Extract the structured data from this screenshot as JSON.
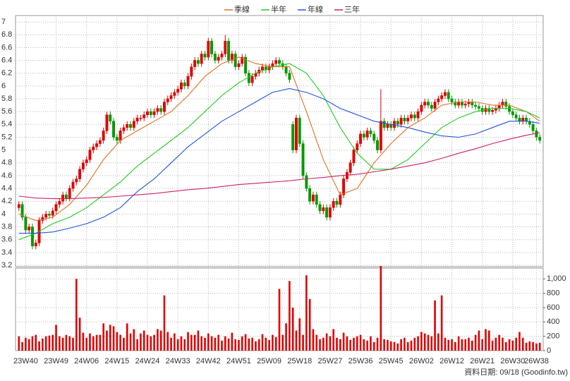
{
  "chart_data": {
    "type": "candlestick",
    "xlim": [
      -1,
      155
    ],
    "xticks": [
      {
        "value": 2,
        "label": "23W40"
      },
      {
        "value": 11,
        "label": "23W49"
      },
      {
        "value": 20,
        "label": "24W06"
      },
      {
        "value": 29,
        "label": "24W15"
      },
      {
        "value": 38,
        "label": "24W24"
      },
      {
        "value": 47,
        "label": "24W33"
      },
      {
        "value": 56,
        "label": "24W42"
      },
      {
        "value": 65,
        "label": "24W51"
      },
      {
        "value": 74,
        "label": "25W09"
      },
      {
        "value": 83,
        "label": "25W18"
      },
      {
        "value": 92,
        "label": "25W27"
      },
      {
        "value": 101,
        "label": "25W36"
      },
      {
        "value": 110,
        "label": "25W45"
      },
      {
        "value": 119,
        "label": "26W02"
      },
      {
        "value": 128,
        "label": "26W12"
      },
      {
        "value": 137,
        "label": "26W21"
      },
      {
        "value": 146,
        "label": "26W30"
      },
      {
        "value": 153,
        "label": "26W38"
      }
    ],
    "ylim": [
      3.2,
      7.1
    ],
    "yticks": [
      3.2,
      3.4,
      3.6,
      3.8,
      4,
      4.2,
      4.4,
      4.6,
      4.8,
      5,
      5.2,
      5.4,
      5.6,
      5.8,
      6,
      6.2,
      6.4,
      6.6,
      6.8,
      7
    ],
    "grid": true,
    "up_color": "#e00000",
    "down_color": "#009900",
    "open": [
      4.1,
      4.15,
      3.95,
      3.75,
      3.8,
      3.5,
      3.55,
      3.9,
      3.95,
      4.0,
      3.98,
      4.05,
      4.15,
      4.2,
      4.3,
      4.25,
      4.4,
      4.5,
      4.55,
      4.7,
      4.8,
      4.85,
      5.0,
      5.05,
      5.1,
      5.15,
      5.3,
      5.55,
      5.45,
      5.2,
      5.15,
      5.3,
      5.35,
      5.4,
      5.35,
      5.45,
      5.5,
      5.5,
      5.55,
      5.6,
      5.55,
      5.6,
      5.65,
      5.6,
      5.75,
      5.8,
      5.85,
      5.9,
      5.95,
      6.05,
      6.0,
      6.15,
      6.3,
      6.4,
      6.35,
      6.5,
      6.45,
      6.7,
      6.5,
      6.4,
      6.45,
      6.5,
      6.7,
      6.4,
      6.5,
      6.3,
      6.35,
      6.45,
      6.2,
      6.05,
      6.15,
      6.2,
      6.25,
      6.3,
      6.25,
      6.3,
      6.35,
      6.4,
      6.35,
      6.3,
      6.2,
      5.4,
      5.0,
      5.5,
      5.1,
      4.6,
      4.4,
      4.2,
      4.3,
      4.15,
      4.05,
      4.1,
      3.95,
      4.1,
      4.2,
      4.15,
      4.3,
      4.55,
      4.65,
      4.8,
      5.0,
      5.1,
      5.25,
      5.2,
      5.3,
      5.25,
      5.15,
      5.0,
      5.45,
      5.35,
      5.4,
      5.35,
      5.45,
      5.4,
      5.5,
      5.45,
      5.5,
      5.55,
      5.5,
      5.6,
      5.7,
      5.75,
      5.7,
      5.65,
      5.75,
      5.8,
      5.85,
      5.9,
      5.8,
      5.75,
      5.7,
      5.75,
      5.7,
      5.72,
      5.75,
      5.7,
      5.68,
      5.65,
      5.6,
      5.65,
      5.6,
      5.62,
      5.65,
      5.7,
      5.75,
      5.68,
      5.6,
      5.55,
      5.5,
      5.45,
      5.5,
      5.45,
      5.4,
      5.3,
      5.2
    ],
    "high": [
      4.2,
      4.2,
      4.0,
      3.85,
      3.85,
      3.6,
      3.95,
      4.0,
      4.05,
      4.05,
      4.1,
      4.2,
      4.25,
      4.35,
      4.35,
      4.45,
      4.55,
      4.6,
      4.75,
      4.85,
      4.9,
      5.05,
      5.1,
      5.15,
      5.2,
      5.35,
      5.6,
      5.6,
      5.5,
      5.25,
      5.35,
      5.4,
      5.45,
      5.45,
      5.5,
      5.55,
      5.55,
      5.6,
      5.65,
      5.65,
      5.65,
      5.7,
      5.7,
      5.8,
      5.85,
      5.9,
      5.95,
      6.0,
      6.1,
      6.1,
      6.2,
      6.35,
      6.45,
      6.45,
      6.55,
      6.55,
      6.75,
      6.75,
      6.55,
      6.5,
      6.55,
      6.8,
      6.75,
      6.55,
      6.55,
      6.4,
      6.5,
      6.5,
      6.25,
      6.2,
      6.25,
      6.3,
      6.35,
      6.35,
      6.35,
      6.4,
      6.45,
      6.45,
      6.4,
      6.35,
      6.25,
      5.45,
      5.55,
      5.55,
      5.15,
      4.65,
      4.45,
      4.35,
      4.35,
      4.2,
      4.15,
      4.15,
      4.15,
      4.25,
      4.25,
      4.35,
      4.6,
      4.7,
      4.85,
      5.05,
      5.15,
      5.3,
      5.3,
      5.35,
      5.35,
      5.3,
      5.2,
      5.95,
      5.5,
      5.45,
      5.45,
      5.5,
      5.5,
      5.55,
      5.55,
      5.55,
      5.6,
      5.6,
      5.65,
      5.75,
      5.8,
      5.8,
      5.75,
      5.8,
      5.85,
      5.9,
      5.95,
      5.95,
      5.85,
      5.8,
      5.8,
      5.8,
      5.77,
      5.8,
      5.8,
      5.75,
      5.73,
      5.7,
      5.7,
      5.7,
      5.67,
      5.7,
      5.75,
      5.8,
      5.8,
      5.73,
      5.65,
      5.6,
      5.55,
      5.55,
      5.55,
      5.5,
      5.45,
      5.35,
      5.25
    ],
    "low": [
      4.05,
      3.9,
      3.7,
      3.7,
      3.45,
      3.45,
      3.5,
      3.85,
      3.9,
      3.93,
      3.93,
      4.0,
      4.1,
      4.15,
      4.2,
      4.2,
      4.35,
      4.45,
      4.5,
      4.65,
      4.75,
      4.8,
      4.95,
      5.0,
      5.05,
      5.1,
      5.25,
      5.4,
      5.15,
      5.1,
      5.1,
      5.25,
      5.3,
      5.3,
      5.3,
      5.4,
      5.45,
      5.45,
      5.5,
      5.5,
      5.5,
      5.55,
      5.55,
      5.55,
      5.7,
      5.75,
      5.8,
      5.85,
      5.9,
      5.95,
      5.95,
      6.1,
      6.25,
      6.3,
      6.3,
      6.4,
      6.4,
      6.45,
      6.35,
      6.35,
      6.4,
      6.45,
      6.35,
      6.35,
      6.25,
      6.25,
      6.3,
      6.15,
      6.0,
      6.0,
      6.1,
      6.15,
      6.2,
      6.2,
      6.2,
      6.25,
      6.3,
      6.3,
      6.25,
      6.15,
      6.05,
      4.95,
      4.95,
      5.05,
      4.55,
      4.35,
      4.15,
      4.15,
      4.1,
      4.0,
      4.0,
      3.9,
      3.9,
      4.05,
      4.1,
      4.1,
      4.25,
      4.5,
      4.6,
      4.75,
      4.95,
      5.05,
      5.15,
      5.15,
      5.2,
      5.1,
      4.95,
      4.95,
      5.3,
      5.3,
      5.3,
      5.3,
      5.35,
      5.35,
      5.4,
      5.4,
      5.45,
      5.45,
      5.45,
      5.55,
      5.65,
      5.65,
      5.6,
      5.6,
      5.7,
      5.75,
      5.8,
      5.75,
      5.7,
      5.65,
      5.65,
      5.65,
      5.65,
      5.67,
      5.65,
      5.63,
      5.6,
      5.55,
      5.55,
      5.55,
      5.55,
      5.57,
      5.6,
      5.65,
      5.63,
      5.55,
      5.5,
      5.45,
      5.4,
      5.4,
      5.4,
      5.35,
      5.25,
      5.15,
      5.1
    ],
    "close": [
      4.15,
      3.95,
      3.75,
      3.8,
      3.5,
      3.55,
      3.9,
      3.95,
      4.0,
      3.98,
      4.05,
      4.15,
      4.2,
      4.3,
      4.25,
      4.4,
      4.5,
      4.55,
      4.7,
      4.8,
      4.85,
      5.0,
      5.05,
      5.1,
      5.15,
      5.3,
      5.55,
      5.45,
      5.2,
      5.15,
      5.3,
      5.35,
      5.4,
      5.35,
      5.45,
      5.5,
      5.5,
      5.55,
      5.6,
      5.55,
      5.6,
      5.65,
      5.6,
      5.75,
      5.8,
      5.85,
      5.9,
      5.95,
      6.05,
      6.0,
      6.15,
      6.3,
      6.4,
      6.35,
      6.5,
      6.45,
      6.7,
      6.5,
      6.4,
      6.45,
      6.5,
      6.7,
      6.4,
      6.5,
      6.3,
      6.35,
      6.45,
      6.2,
      6.05,
      6.15,
      6.2,
      6.25,
      6.3,
      6.25,
      6.3,
      6.35,
      6.4,
      6.35,
      6.3,
      6.2,
      6.1,
      5.0,
      5.5,
      5.1,
      4.6,
      4.4,
      4.2,
      4.3,
      4.15,
      4.05,
      4.1,
      3.95,
      4.1,
      4.2,
      4.15,
      4.3,
      4.55,
      4.65,
      4.8,
      5.0,
      5.1,
      5.25,
      5.2,
      5.3,
      5.25,
      5.15,
      5.0,
      5.45,
      5.35,
      5.4,
      5.35,
      5.45,
      5.4,
      5.5,
      5.45,
      5.5,
      5.55,
      5.5,
      5.6,
      5.7,
      5.75,
      5.7,
      5.65,
      5.75,
      5.8,
      5.85,
      5.9,
      5.8,
      5.75,
      5.7,
      5.75,
      5.7,
      5.72,
      5.75,
      5.7,
      5.68,
      5.65,
      5.6,
      5.65,
      5.6,
      5.62,
      5.65,
      5.7,
      5.75,
      5.68,
      5.6,
      5.55,
      5.5,
      5.45,
      5.5,
      5.45,
      5.4,
      5.3,
      5.2,
      5.15
    ],
    "series": [
      {
        "name": "季線",
        "color": "#e07020",
        "x": [
          0,
          5,
          10,
          15,
          20,
          25,
          30,
          35,
          40,
          45,
          50,
          55,
          60,
          65,
          70,
          75,
          80,
          85,
          90,
          95,
          100,
          105,
          110,
          115,
          120,
          125,
          130,
          135,
          140,
          145,
          150,
          154
        ],
        "values": [
          4.0,
          3.9,
          3.95,
          4.15,
          4.45,
          4.85,
          5.15,
          5.3,
          5.45,
          5.6,
          5.85,
          6.15,
          6.35,
          6.45,
          6.35,
          6.3,
          6.3,
          5.6,
          4.85,
          4.3,
          4.4,
          4.8,
          5.1,
          5.35,
          5.5,
          5.7,
          5.75,
          5.75,
          5.7,
          5.7,
          5.6,
          5.45
        ]
      },
      {
        "name": "半年",
        "color": "#22cc22",
        "x": [
          0,
          5,
          10,
          15,
          20,
          25,
          30,
          35,
          40,
          45,
          50,
          55,
          60,
          65,
          70,
          75,
          80,
          85,
          90,
          95,
          100,
          105,
          110,
          115,
          120,
          125,
          130,
          135,
          140,
          145,
          150,
          154
        ],
        "values": [
          3.6,
          3.7,
          3.85,
          3.95,
          4.1,
          4.3,
          4.5,
          4.75,
          4.95,
          5.15,
          5.35,
          5.6,
          5.85,
          6.05,
          6.2,
          6.3,
          6.35,
          6.2,
          5.85,
          5.35,
          4.95,
          4.7,
          4.7,
          4.85,
          5.1,
          5.35,
          5.5,
          5.6,
          5.65,
          5.65,
          5.6,
          5.5
        ]
      },
      {
        "name": "年線",
        "color": "#2255dd",
        "x": [
          0,
          5,
          10,
          15,
          20,
          25,
          30,
          35,
          40,
          45,
          50,
          55,
          60,
          65,
          70,
          75,
          80,
          85,
          90,
          95,
          100,
          105,
          110,
          115,
          120,
          125,
          130,
          135,
          140,
          145,
          150,
          154
        ],
        "values": [
          3.7,
          3.7,
          3.72,
          3.78,
          3.85,
          3.95,
          4.1,
          4.35,
          4.55,
          4.8,
          5.05,
          5.25,
          5.45,
          5.6,
          5.75,
          5.9,
          5.96,
          5.9,
          5.8,
          5.65,
          5.55,
          5.45,
          5.4,
          5.35,
          5.28,
          5.22,
          5.2,
          5.25,
          5.35,
          5.45,
          5.45,
          5.42
        ]
      },
      {
        "name": "三年",
        "color": "#cc2266",
        "x": [
          0,
          5,
          10,
          15,
          20,
          25,
          30,
          35,
          40,
          45,
          50,
          55,
          60,
          65,
          70,
          75,
          80,
          85,
          90,
          95,
          100,
          105,
          110,
          115,
          120,
          125,
          130,
          135,
          140,
          145,
          150,
          154
        ],
        "values": [
          4.28,
          4.25,
          4.24,
          4.24,
          4.25,
          4.26,
          4.28,
          4.3,
          4.32,
          4.35,
          4.38,
          4.4,
          4.43,
          4.46,
          4.48,
          4.5,
          4.52,
          4.55,
          4.57,
          4.6,
          4.62,
          4.66,
          4.7,
          4.75,
          4.8,
          4.87,
          4.95,
          5.02,
          5.1,
          5.17,
          5.23,
          5.27
        ]
      }
    ],
    "volume": {
      "color": "#e00000",
      "y2lim": [
        0,
        1150
      ],
      "y2ticks": [
        0,
        200,
        400,
        600,
        800,
        {
          "value": 1000,
          "label": "1,000"
        }
      ],
      "values": [
        200,
        120,
        180,
        160,
        200,
        220,
        130,
        170,
        200,
        210,
        220,
        360,
        200,
        180,
        220,
        200,
        180,
        1000,
        460,
        250,
        180,
        240,
        200,
        220,
        220,
        380,
        280,
        360,
        340,
        260,
        220,
        180,
        380,
        240,
        300,
        160,
        240,
        280,
        220,
        200,
        220,
        300,
        280,
        770,
        260,
        180,
        240,
        160,
        200,
        160,
        260,
        220,
        220,
        280,
        200,
        180,
        240,
        200,
        180,
        220,
        140,
        200,
        170,
        250,
        160,
        150,
        200,
        230,
        170,
        180,
        130,
        160,
        230,
        180,
        150,
        220,
        190,
        860,
        220,
        380,
        970,
        600,
        280,
        450,
        220,
        1050,
        720,
        300,
        220,
        160,
        180,
        240,
        200,
        300,
        180,
        160,
        250,
        200,
        150,
        180,
        200,
        220,
        160,
        140,
        200,
        120,
        180,
        1180,
        160,
        150,
        130,
        120,
        100,
        160,
        180,
        120,
        140,
        180,
        200,
        260,
        240,
        220,
        200,
        700,
        240,
        770,
        180,
        150,
        160,
        120,
        200,
        160,
        160,
        180,
        140,
        220,
        280,
        160,
        300,
        280,
        140,
        180,
        220,
        180,
        120,
        160,
        140,
        180,
        260,
        180,
        110,
        130,
        120,
        100,
        110
      ]
    },
    "source": "資料日期: 09/18  (Goodinfo.tw)"
  }
}
